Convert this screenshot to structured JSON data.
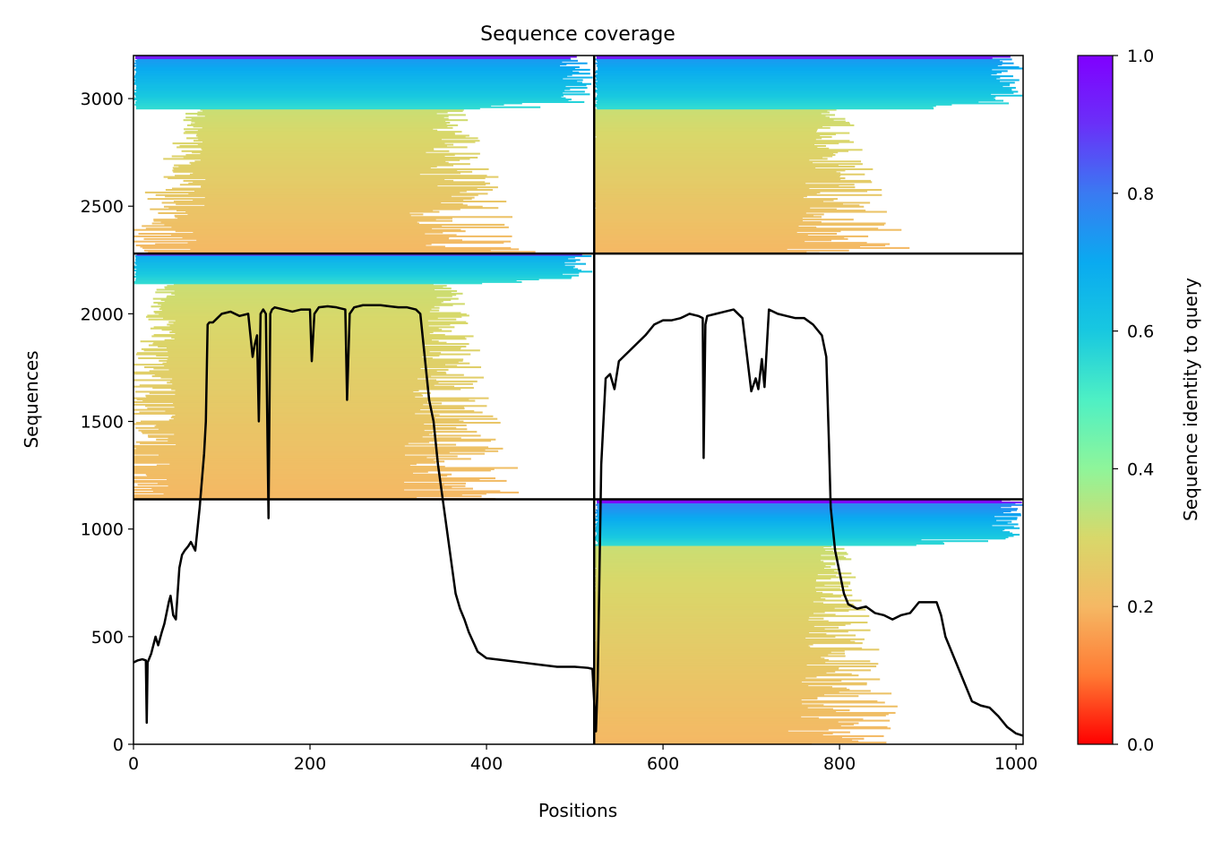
{
  "chart_data": {
    "type": "heatmap",
    "title": "Sequence coverage",
    "xlabel": "Positions",
    "ylabel": "Sequences",
    "xlim": [
      0,
      1008
    ],
    "ylim": [
      0,
      3200
    ],
    "x_ticks": [
      0,
      200,
      400,
      600,
      800,
      1000
    ],
    "y_ticks": [
      0,
      500,
      1000,
      1500,
      2000,
      2500,
      3000
    ],
    "colorbar": {
      "label": "Sequence identity to query",
      "range": [
        0.0,
        1.0
      ],
      "ticks": [
        0.0,
        0.2,
        0.4,
        0.6,
        0.8,
        1.0
      ],
      "colormap": [
        "#ff0000",
        "#ff7a33",
        "#f5b864",
        "#d8d86a",
        "#8ff59a",
        "#4ef0c4",
        "#18c8e0",
        "#0aaaf0",
        "#3a7af2",
        "#6a30f8",
        "#8000ff"
      ]
    },
    "divider_positions": [
      522
    ],
    "divider_sequences": [
      1138,
      2280
    ],
    "blocks": [
      {
        "x": [
          0,
          522
        ],
        "y": [
          2280,
          3200
        ],
        "core_x": [
          82,
          355
        ],
        "high_id_from": 2950,
        "min_identity": 0.2,
        "max_identity": 0.75
      },
      {
        "x": [
          522,
          1008
        ],
        "y": [
          2280,
          3200
        ],
        "core_x": [
          525,
          790
        ],
        "high_id_from": 2950,
        "min_identity": 0.2,
        "max_identity": 0.75
      },
      {
        "x": [
          0,
          522
        ],
        "y": [
          1138,
          2280
        ],
        "core_x": [
          48,
          350
        ],
        "high_id_from": 2140,
        "min_identity": 0.2,
        "max_identity": 0.7
      },
      {
        "x": [
          522,
          1008
        ],
        "y": [
          0,
          1138
        ],
        "core_x": [
          525,
          790
        ],
        "high_id_from": 920,
        "min_identity": 0.2,
        "max_identity": 0.8
      }
    ],
    "coverage_line": {
      "x": [
        0,
        5,
        10,
        14,
        15,
        16,
        18,
        20,
        25,
        28,
        32,
        35,
        40,
        42,
        45,
        48,
        50,
        52,
        55,
        58,
        62,
        65,
        70,
        72,
        75,
        80,
        82,
        84,
        86,
        90,
        95,
        100,
        110,
        120,
        130,
        135,
        137,
        140,
        142,
        144,
        147,
        150,
        153,
        155,
        157,
        160,
        170,
        180,
        190,
        200,
        202,
        205,
        210,
        220,
        230,
        240,
        242,
        245,
        250,
        260,
        270,
        280,
        290,
        300,
        310,
        320,
        325,
        330,
        335,
        340,
        345,
        350,
        355,
        360,
        365,
        370,
        375,
        380,
        390,
        400,
        420,
        440,
        460,
        480,
        500,
        515,
        520,
        522,
        524,
        526,
        530,
        535,
        540,
        545,
        550,
        560,
        570,
        580,
        590,
        600,
        610,
        620,
        630,
        640,
        645,
        646,
        648,
        650,
        660,
        670,
        680,
        690,
        700,
        705,
        708,
        712,
        715,
        720,
        730,
        740,
        750,
        760,
        770,
        780,
        785,
        788,
        790,
        795,
        800,
        805,
        810,
        820,
        830,
        840,
        850,
        860,
        870,
        880,
        890,
        900,
        910,
        915,
        920,
        930,
        940,
        950,
        960,
        970,
        980,
        990,
        1000,
        1008
      ],
      "y": [
        380,
        390,
        395,
        390,
        100,
        380,
        400,
        420,
        500,
        460,
        520,
        560,
        660,
        690,
        600,
        580,
        700,
        820,
        880,
        900,
        920,
        940,
        900,
        980,
        1100,
        1350,
        1500,
        1950,
        1960,
        1960,
        1980,
        2000,
        2010,
        1990,
        2000,
        1800,
        1850,
        1900,
        1500,
        2000,
        2020,
        2000,
        1050,
        2000,
        2020,
        2030,
        2020,
        2010,
        2020,
        2020,
        1780,
        2000,
        2030,
        2035,
        2030,
        2020,
        1600,
        2000,
        2030,
        2040,
        2040,
        2040,
        2035,
        2030,
        2030,
        2020,
        2000,
        1800,
        1600,
        1500,
        1300,
        1150,
        1000,
        850,
        700,
        630,
        580,
        520,
        430,
        400,
        390,
        380,
        370,
        360,
        360,
        355,
        350,
        200,
        60,
        300,
        1300,
        1700,
        1720,
        1650,
        1780,
        1820,
        1860,
        1900,
        1950,
        1970,
        1970,
        1980,
        2000,
        1990,
        1980,
        1330,
        1950,
        1990,
        2000,
        2010,
        2020,
        1980,
        1640,
        1700,
        1650,
        1790,
        1660,
        2020,
        2000,
        1990,
        1980,
        1980,
        1950,
        1900,
        1800,
        1400,
        1100,
        900,
        800,
        700,
        650,
        630,
        640,
        610,
        600,
        580,
        600,
        610,
        660,
        660,
        660,
        600,
        500,
        400,
        300,
        200,
        180,
        170,
        130,
        80,
        50,
        40
      ]
    }
  }
}
